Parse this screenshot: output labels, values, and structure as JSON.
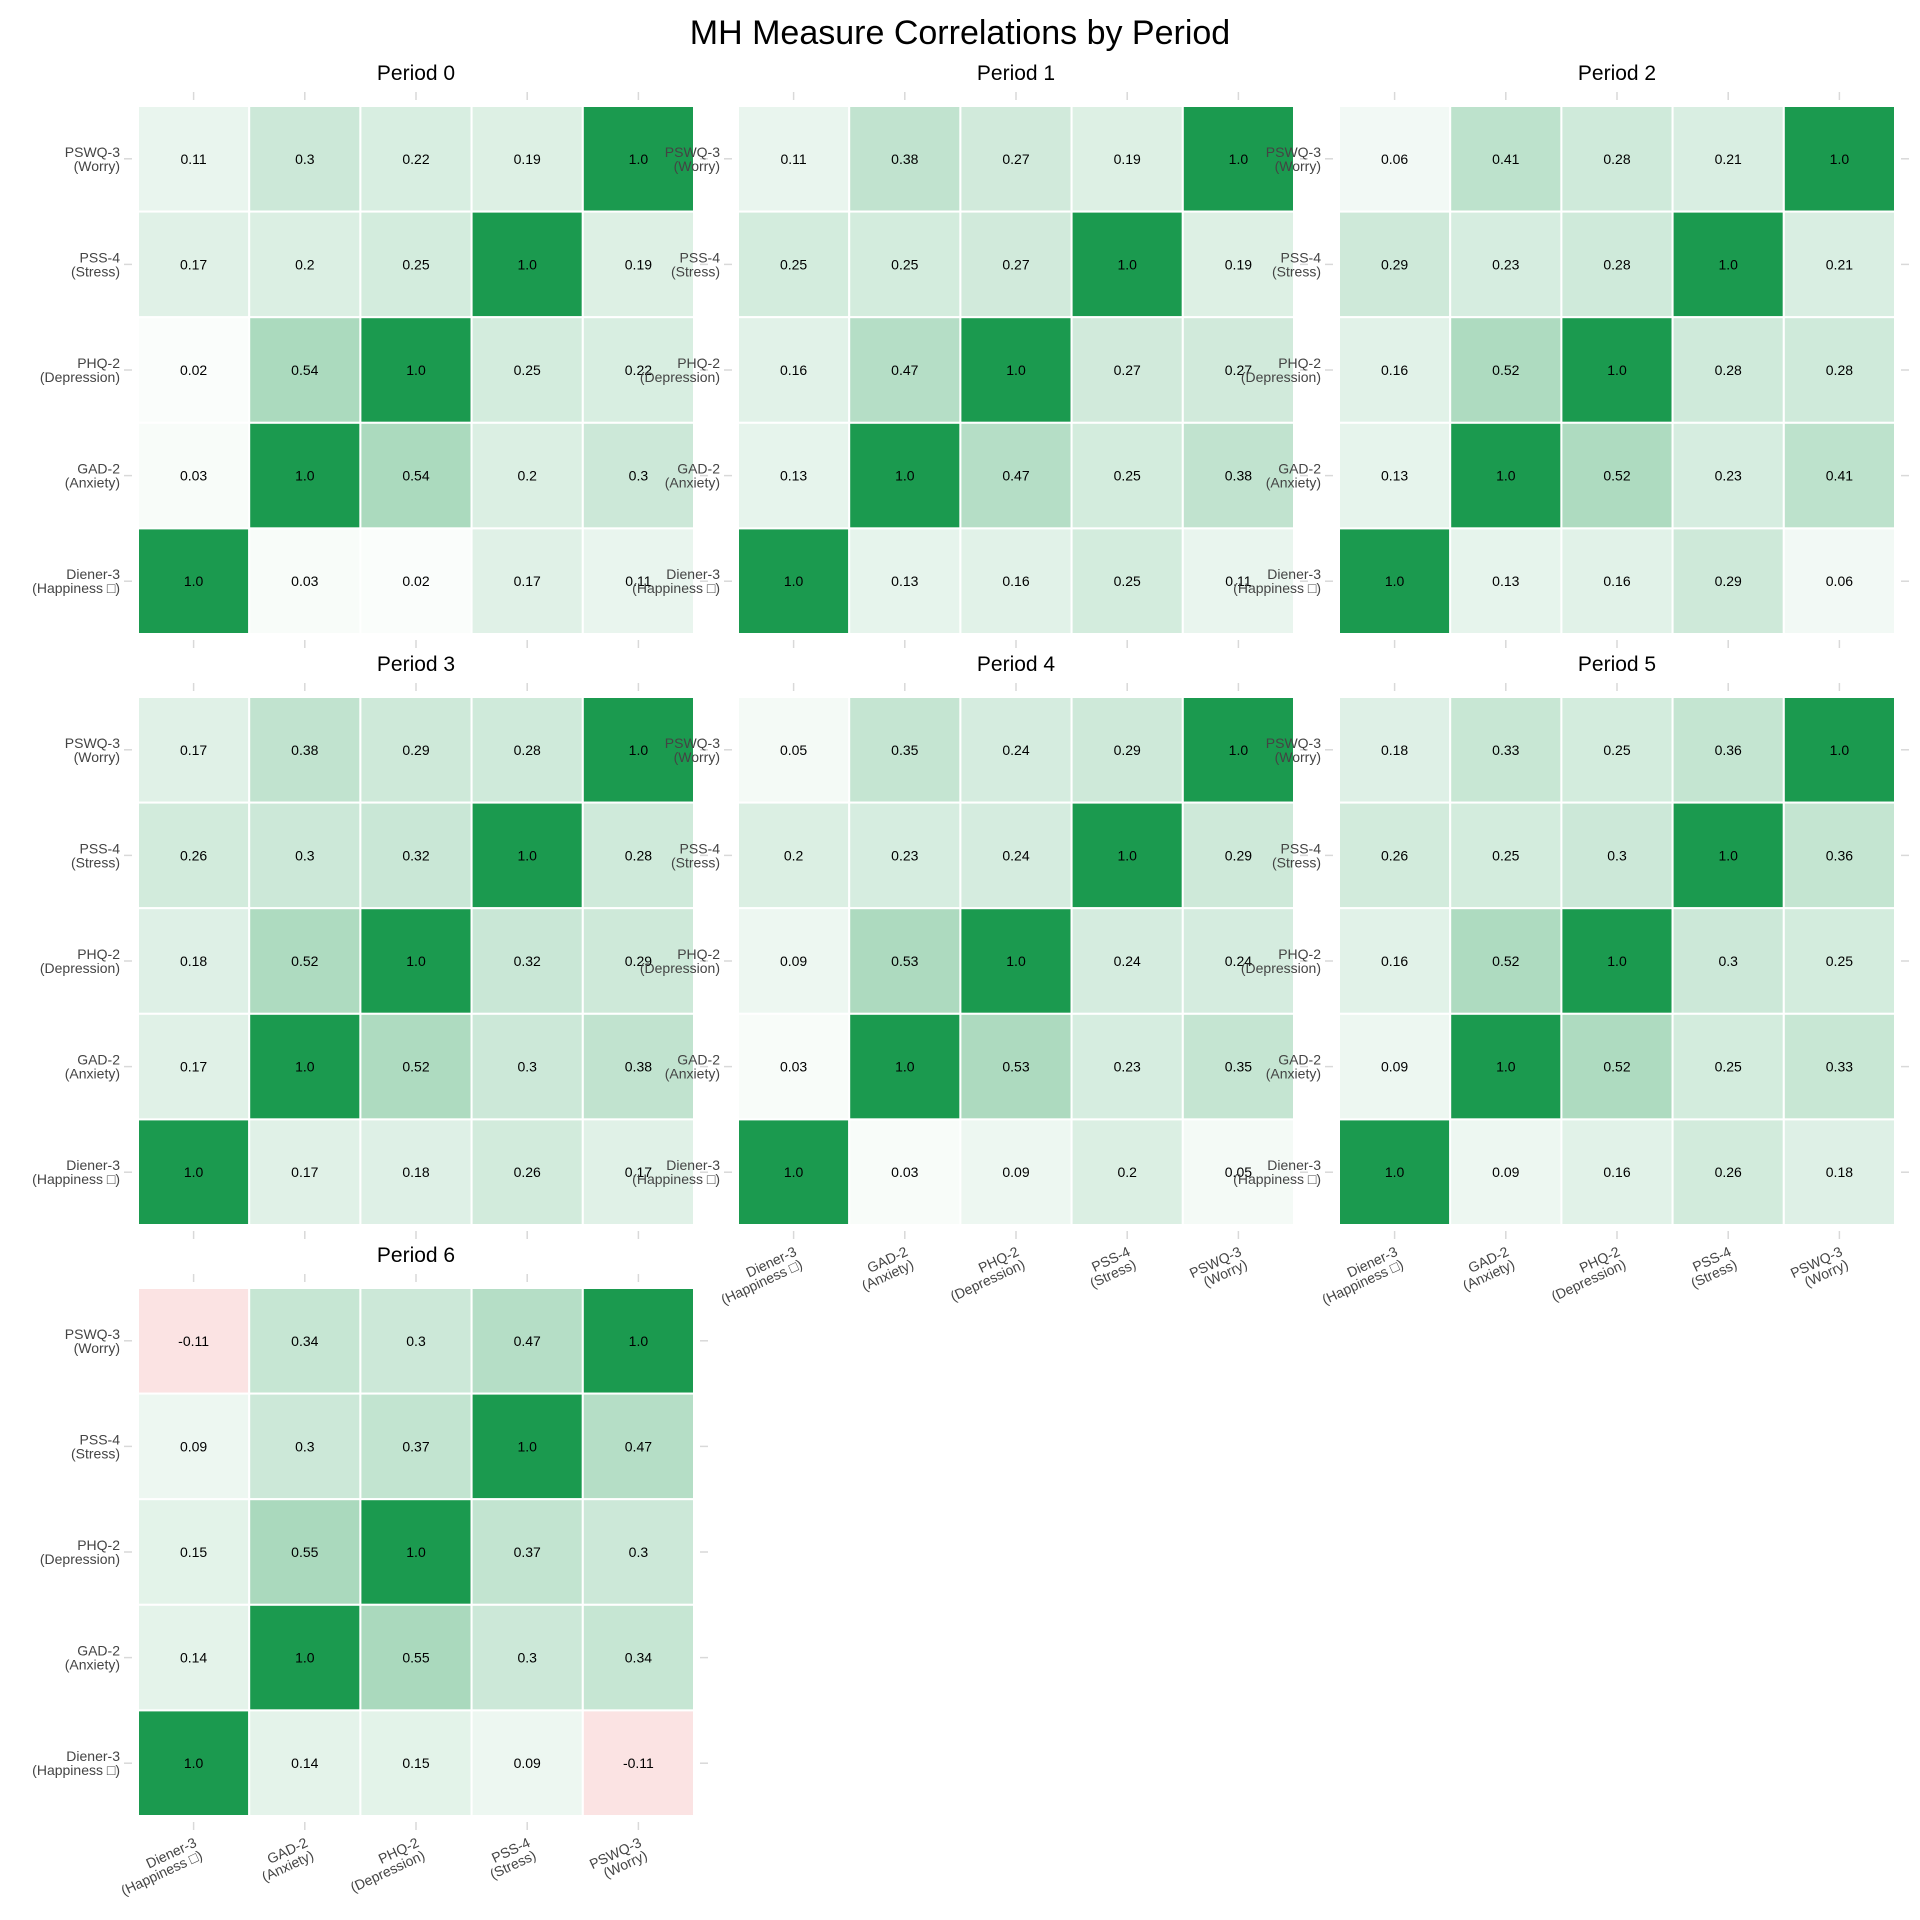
{
  "chart_data": {
    "type": "heatmap",
    "title": "MH Measure Correlations by Period",
    "measures": [
      [
        "Diener-3",
        "(Happiness □)"
      ],
      [
        "GAD-2",
        "(Anxiety)"
      ],
      [
        "PHQ-2",
        "(Depression)"
      ],
      [
        "PSS-4",
        "(Stress)"
      ],
      [
        "PSWQ-3",
        "(Worry)"
      ]
    ],
    "color_scale": {
      "positive": "#1b9a4f",
      "negative": "#f8d0d0",
      "zero": "#ffffff"
    },
    "value_labels_one": "1.0",
    "panels": [
      {
        "title": "Period 0",
        "matrix": [
          [
            1.0,
            0.03,
            0.02,
            0.17,
            0.11
          ],
          [
            0.03,
            1.0,
            0.54,
            0.2,
            0.3
          ],
          [
            0.02,
            0.54,
            1.0,
            0.25,
            0.22
          ],
          [
            0.17,
            0.2,
            0.25,
            1.0,
            0.19
          ],
          [
            0.11,
            0.3,
            0.22,
            0.19,
            1.0
          ]
        ]
      },
      {
        "title": "Period 1",
        "matrix": [
          [
            1.0,
            0.13,
            0.16,
            0.25,
            0.11
          ],
          [
            0.13,
            1.0,
            0.47,
            0.25,
            0.38
          ],
          [
            0.16,
            0.47,
            1.0,
            0.27,
            0.27
          ],
          [
            0.25,
            0.25,
            0.27,
            1.0,
            0.19
          ],
          [
            0.11,
            0.38,
            0.27,
            0.19,
            1.0
          ]
        ]
      },
      {
        "title": "Period 2",
        "matrix": [
          [
            1.0,
            0.13,
            0.16,
            0.29,
            0.06
          ],
          [
            0.13,
            1.0,
            0.52,
            0.23,
            0.41
          ],
          [
            0.16,
            0.52,
            1.0,
            0.28,
            0.28
          ],
          [
            0.29,
            0.23,
            0.28,
            1.0,
            0.21
          ],
          [
            0.06,
            0.41,
            0.28,
            0.21,
            1.0
          ]
        ]
      },
      {
        "title": "Period 3",
        "matrix": [
          [
            1.0,
            0.17,
            0.18,
            0.26,
            0.17
          ],
          [
            0.17,
            1.0,
            0.52,
            0.3,
            0.38
          ],
          [
            0.18,
            0.52,
            1.0,
            0.32,
            0.29
          ],
          [
            0.26,
            0.3,
            0.32,
            1.0,
            0.28
          ],
          [
            0.17,
            0.38,
            0.29,
            0.28,
            1.0
          ]
        ]
      },
      {
        "title": "Period 4",
        "matrix": [
          [
            1.0,
            0.03,
            0.09,
            0.2,
            0.05
          ],
          [
            0.03,
            1.0,
            0.53,
            0.23,
            0.35
          ],
          [
            0.09,
            0.53,
            1.0,
            0.24,
            0.24
          ],
          [
            0.2,
            0.23,
            0.24,
            1.0,
            0.29
          ],
          [
            0.05,
            0.35,
            0.24,
            0.29,
            1.0
          ]
        ]
      },
      {
        "title": "Period 5",
        "matrix": [
          [
            1.0,
            0.09,
            0.16,
            0.26,
            0.18
          ],
          [
            0.09,
            1.0,
            0.52,
            0.25,
            0.33
          ],
          [
            0.16,
            0.52,
            1.0,
            0.3,
            0.25
          ],
          [
            0.26,
            0.25,
            0.3,
            1.0,
            0.36
          ],
          [
            0.18,
            0.33,
            0.25,
            0.36,
            1.0
          ]
        ]
      },
      {
        "title": "Period 6",
        "matrix": [
          [
            1.0,
            0.14,
            0.15,
            0.09,
            -0.11
          ],
          [
            0.14,
            1.0,
            0.55,
            0.3,
            0.34
          ],
          [
            0.15,
            0.55,
            1.0,
            0.37,
            0.3
          ],
          [
            0.09,
            0.3,
            0.37,
            1.0,
            0.47
          ],
          [
            -0.11,
            0.34,
            0.3,
            0.47,
            1.0
          ]
        ]
      }
    ]
  }
}
